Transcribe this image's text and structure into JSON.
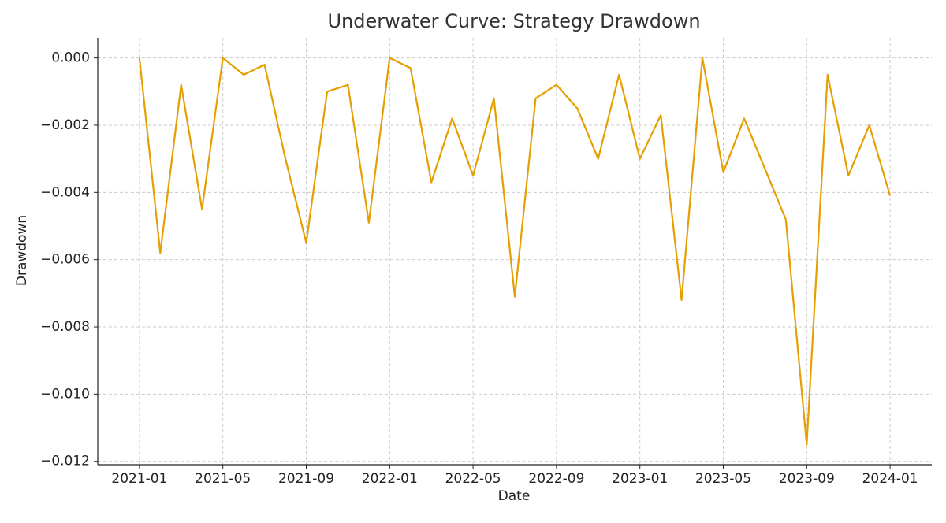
{
  "chart_data": {
    "type": "line",
    "title": "Underwater Curve: Strategy Drawdown",
    "xlabel": "Date",
    "ylabel": "Drawdown",
    "x": [
      "2021-01",
      "2021-02",
      "2021-03",
      "2021-04",
      "2021-05",
      "2021-06",
      "2021-07",
      "2021-08",
      "2021-09",
      "2021-10",
      "2021-11",
      "2021-12",
      "2022-01",
      "2022-02",
      "2022-03",
      "2022-04",
      "2022-05",
      "2022-06",
      "2022-07",
      "2022-08",
      "2022-09",
      "2022-10",
      "2022-11",
      "2022-12",
      "2023-01",
      "2023-02",
      "2023-03",
      "2023-04",
      "2023-05",
      "2023-06",
      "2023-07",
      "2023-08",
      "2023-09",
      "2023-10",
      "2023-11",
      "2023-12",
      "2024-01"
    ],
    "series": [
      {
        "name": "Drawdown",
        "color": "#e69f00",
        "values": [
          0,
          -0.0058,
          -0.0008,
          -0.0045,
          0,
          -0.0005,
          -0.0002,
          -0.003,
          -0.0055,
          -0.001,
          -0.0008,
          -0.0049,
          0,
          -0.0003,
          -0.0037,
          -0.0018,
          -0.0035,
          -0.0012,
          -0.0071,
          -0.0012,
          -0.0008,
          -0.0015,
          -0.003,
          -0.0005,
          -0.003,
          -0.0017,
          -0.0072,
          0,
          -0.0034,
          -0.0018,
          -0.0033,
          -0.0048,
          -0.0115,
          -0.0005,
          -0.0035,
          -0.002,
          -0.0041
        ]
      }
    ],
    "xlim": [
      "2020-11",
      "2024-03"
    ],
    "xticks": [
      "2021-01",
      "2021-05",
      "2021-09",
      "2022-01",
      "2022-05",
      "2022-09",
      "2023-01",
      "2023-05",
      "2023-09",
      "2024-01"
    ],
    "ylim": [
      -0.0121,
      0.0006
    ],
    "yticks": [
      {
        "value": 0,
        "label": "0.000"
      },
      {
        "value": -0.002,
        "label": "−0.002"
      },
      {
        "value": -0.004,
        "label": "−0.004"
      },
      {
        "value": -0.006,
        "label": "−0.006"
      },
      {
        "value": -0.008,
        "label": "−0.008"
      },
      {
        "value": -0.01,
        "label": "−0.010"
      },
      {
        "value": -0.012,
        "label": "−0.012"
      }
    ],
    "grid": true
  }
}
